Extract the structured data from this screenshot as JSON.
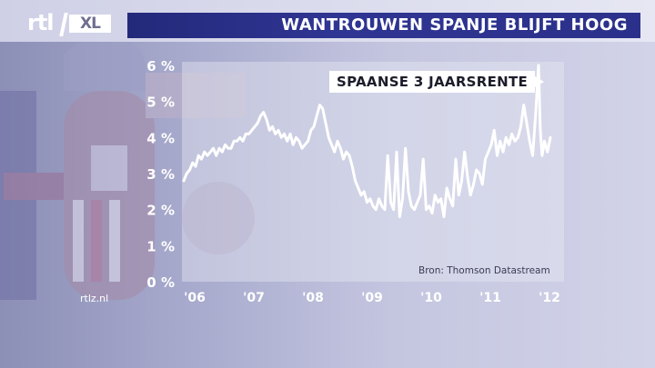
{
  "header": {
    "logo_text": "rtl XL",
    "title": "WANTROUWEN SPANJE BLIJFT HOOG"
  },
  "colors": {
    "title_bar": "#2b318a",
    "background": "#b3b5d3",
    "line": "#ffffff"
  },
  "footer": {
    "source": "Bron: Thomson Datastream",
    "site": "rtlz.nl"
  },
  "chart_data": {
    "type": "line",
    "annotation": "SPAANSE 3 JAARSRENTE",
    "ylabel": "",
    "xlabel": "",
    "ylim": [
      0,
      6
    ],
    "xlim": [
      2006.0,
      2012.4
    ],
    "yticks": [
      "0 %",
      "1 %",
      "2 %",
      "3 %",
      "4 %",
      "5 %",
      "6 %"
    ],
    "xticks": [
      {
        "label": "'06",
        "value": 2006.0
      },
      {
        "label": "'07",
        "value": 2007.0
      },
      {
        "label": "'08",
        "value": 2008.0
      },
      {
        "label": "'09",
        "value": 2009.0
      },
      {
        "label": "'10",
        "value": 2010.0
      },
      {
        "label": "'11",
        "value": 2011.0
      },
      {
        "label": "'12",
        "value": 2012.0
      }
    ],
    "grid": false,
    "series": [
      {
        "color": "#ffffff",
        "x": [
          2006.0,
          2006.05,
          2006.1,
          2006.15,
          2006.2,
          2006.25,
          2006.3,
          2006.35,
          2006.4,
          2006.45,
          2006.5,
          2006.55,
          2006.6,
          2006.65,
          2006.7,
          2006.75,
          2006.8,
          2006.85,
          2006.9,
          2006.95,
          2007.0,
          2007.05,
          2007.1,
          2007.15,
          2007.2,
          2007.25,
          2007.3,
          2007.35,
          2007.4,
          2007.45,
          2007.5,
          2007.55,
          2007.6,
          2007.65,
          2007.7,
          2007.75,
          2007.8,
          2007.85,
          2007.9,
          2007.95,
          2008.0,
          2008.05,
          2008.1,
          2008.15,
          2008.2,
          2008.25,
          2008.3,
          2008.35,
          2008.4,
          2008.45,
          2008.5,
          2008.55,
          2008.6,
          2008.65,
          2008.7,
          2008.75,
          2008.8,
          2008.85,
          2008.9,
          2008.95,
          2009.0,
          2009.05,
          2009.1,
          2009.15,
          2009.2,
          2009.25,
          2009.3,
          2009.35,
          2009.4,
          2009.45,
          2009.5,
          2009.55,
          2009.6,
          2009.65,
          2009.7,
          2009.75,
          2009.8,
          2009.85,
          2009.9,
          2009.95,
          2010.0,
          2010.05,
          2010.1,
          2010.15,
          2010.2,
          2010.25,
          2010.3,
          2010.35,
          2010.4,
          2010.45,
          2010.5,
          2010.55,
          2010.6,
          2010.65,
          2010.7,
          2010.75,
          2010.8,
          2010.85,
          2010.9,
          2010.95,
          2011.0,
          2011.05,
          2011.1,
          2011.15,
          2011.2,
          2011.25,
          2011.3,
          2011.35,
          2011.4,
          2011.45,
          2011.5,
          2011.55,
          2011.6,
          2011.65,
          2011.7,
          2011.75,
          2011.8,
          2011.85,
          2011.9,
          2011.95,
          2012.0,
          2012.03,
          2012.06,
          2012.1,
          2012.15,
          2012.2
        ],
        "y": [
          2.8,
          3.0,
          3.1,
          3.3,
          3.2,
          3.5,
          3.4,
          3.6,
          3.5,
          3.6,
          3.7,
          3.5,
          3.7,
          3.6,
          3.8,
          3.7,
          3.7,
          3.9,
          3.9,
          4.0,
          3.9,
          4.1,
          4.1,
          4.2,
          4.3,
          4.4,
          4.6,
          4.7,
          4.5,
          4.2,
          4.3,
          4.1,
          4.2,
          4.0,
          4.1,
          3.9,
          4.1,
          3.8,
          4.0,
          3.9,
          3.7,
          3.8,
          3.9,
          4.2,
          4.3,
          4.6,
          4.9,
          4.8,
          4.4,
          4.0,
          3.8,
          3.6,
          3.9,
          3.7,
          3.4,
          3.6,
          3.5,
          3.2,
          2.8,
          2.6,
          2.4,
          2.5,
          2.2,
          2.3,
          2.1,
          2.0,
          2.3,
          2.1,
          2.0,
          3.5,
          2.2,
          2.0,
          3.6,
          1.8,
          2.3,
          3.7,
          2.5,
          2.1,
          2.0,
          2.2,
          2.4,
          3.4,
          2.0,
          2.1,
          1.9,
          2.4,
          2.2,
          2.3,
          1.8,
          2.6,
          2.3,
          2.1,
          3.4,
          2.4,
          2.8,
          3.6,
          2.9,
          2.4,
          2.7,
          3.1,
          3.0,
          2.7,
          3.4,
          3.6,
          3.8,
          4.2,
          3.5,
          3.9,
          3.6,
          4.0,
          3.8,
          4.1,
          3.9,
          4.0,
          4.3,
          4.9,
          4.4,
          3.9,
          3.5,
          4.6,
          6.0,
          4.2,
          3.5,
          3.9,
          3.6,
          4.0
        ]
      }
    ]
  }
}
